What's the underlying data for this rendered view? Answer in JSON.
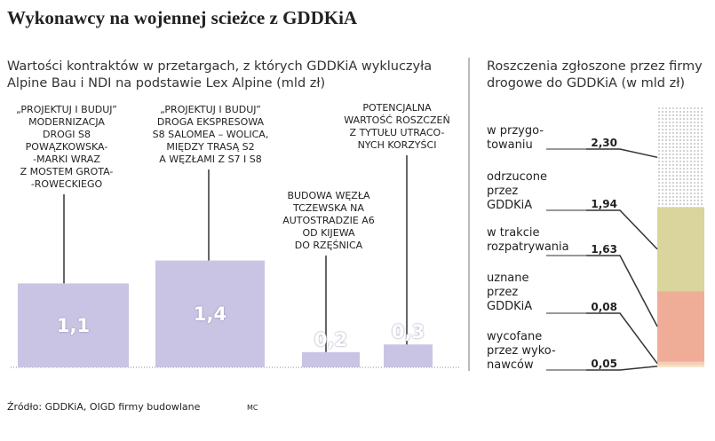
{
  "title": "Wykonawcy na wojennej scieżce z GDDKiA",
  "source": "Źródło: GDDKiA, OIGD firmy budowlane",
  "credit": "MC",
  "chart_data": [
    {
      "type": "bar",
      "title": "Wartości kontraktów w przetargach, z których GDDKiA wykluczyła\nAlpine Bau i NDI na podstawie Lex Alpine (mld zł)",
      "categories": [
        "„PROJEKTUJ I BUDUJ”\nMODERNIZACJA\nDROGI S8\nPOWĄZKOWSKA-\n-MARKI WRAZ\nZ MOSTEM GROTA-\n-ROWECKIEGO",
        "„PROJEKTUJ I BUDUJ”\nDROGA EKSPRESOWA\nS8 SALOMEA – WOLICA,\nMIĘDZY TRASĄ S2\nA WĘZŁAMI Z S7 I S8",
        "BUDOWA WĘZŁA\nTCZEWSKA NA\nAUTOSTRADZIE A6\nOD KIJEWA\nDO RZĘŚNICA",
        "POTENCJALNA\nWARTOŚĆ ROSZCZEŃ\nZ TYTUŁU UTRACO-\nNYCH KORZYŚCI"
      ],
      "values": [
        1.1,
        1.4,
        0.2,
        0.3
      ],
      "value_labels": [
        "1,1",
        "1,4",
        "0,2",
        "0,3"
      ],
      "color": "#cac4e4"
    },
    {
      "type": "stacked-bar",
      "title": "Roszczenia zgłoszone przez firmy\ndrogowe do GDDKiA (w mld zł)",
      "series": [
        {
          "name": "w przygo-\ntowaniu",
          "values": [
            2.3
          ],
          "value_labels": [
            "2,30"
          ],
          "color": "#c4c4c4",
          "pattern": "dots"
        },
        {
          "name": "odrzucone\nprzez\nGDDKiA",
          "values": [
            1.94
          ],
          "value_labels": [
            "1,94"
          ],
          "color": "#d9d59c"
        },
        {
          "name": "w trakcie\nrozpatrywania",
          "values": [
            1.63
          ],
          "value_labels": [
            "1,63"
          ],
          "color": "#efad98"
        },
        {
          "name": "uznane\nprzez\nGDDKiA",
          "values": [
            0.08
          ],
          "value_labels": [
            "0,08"
          ],
          "color": "#f6cdb8"
        },
        {
          "name": "wycofane\nprzez wyko-\nnawców",
          "values": [
            0.05
          ],
          "value_labels": [
            "0,05"
          ],
          "color": "#f5e6c8"
        }
      ]
    }
  ]
}
